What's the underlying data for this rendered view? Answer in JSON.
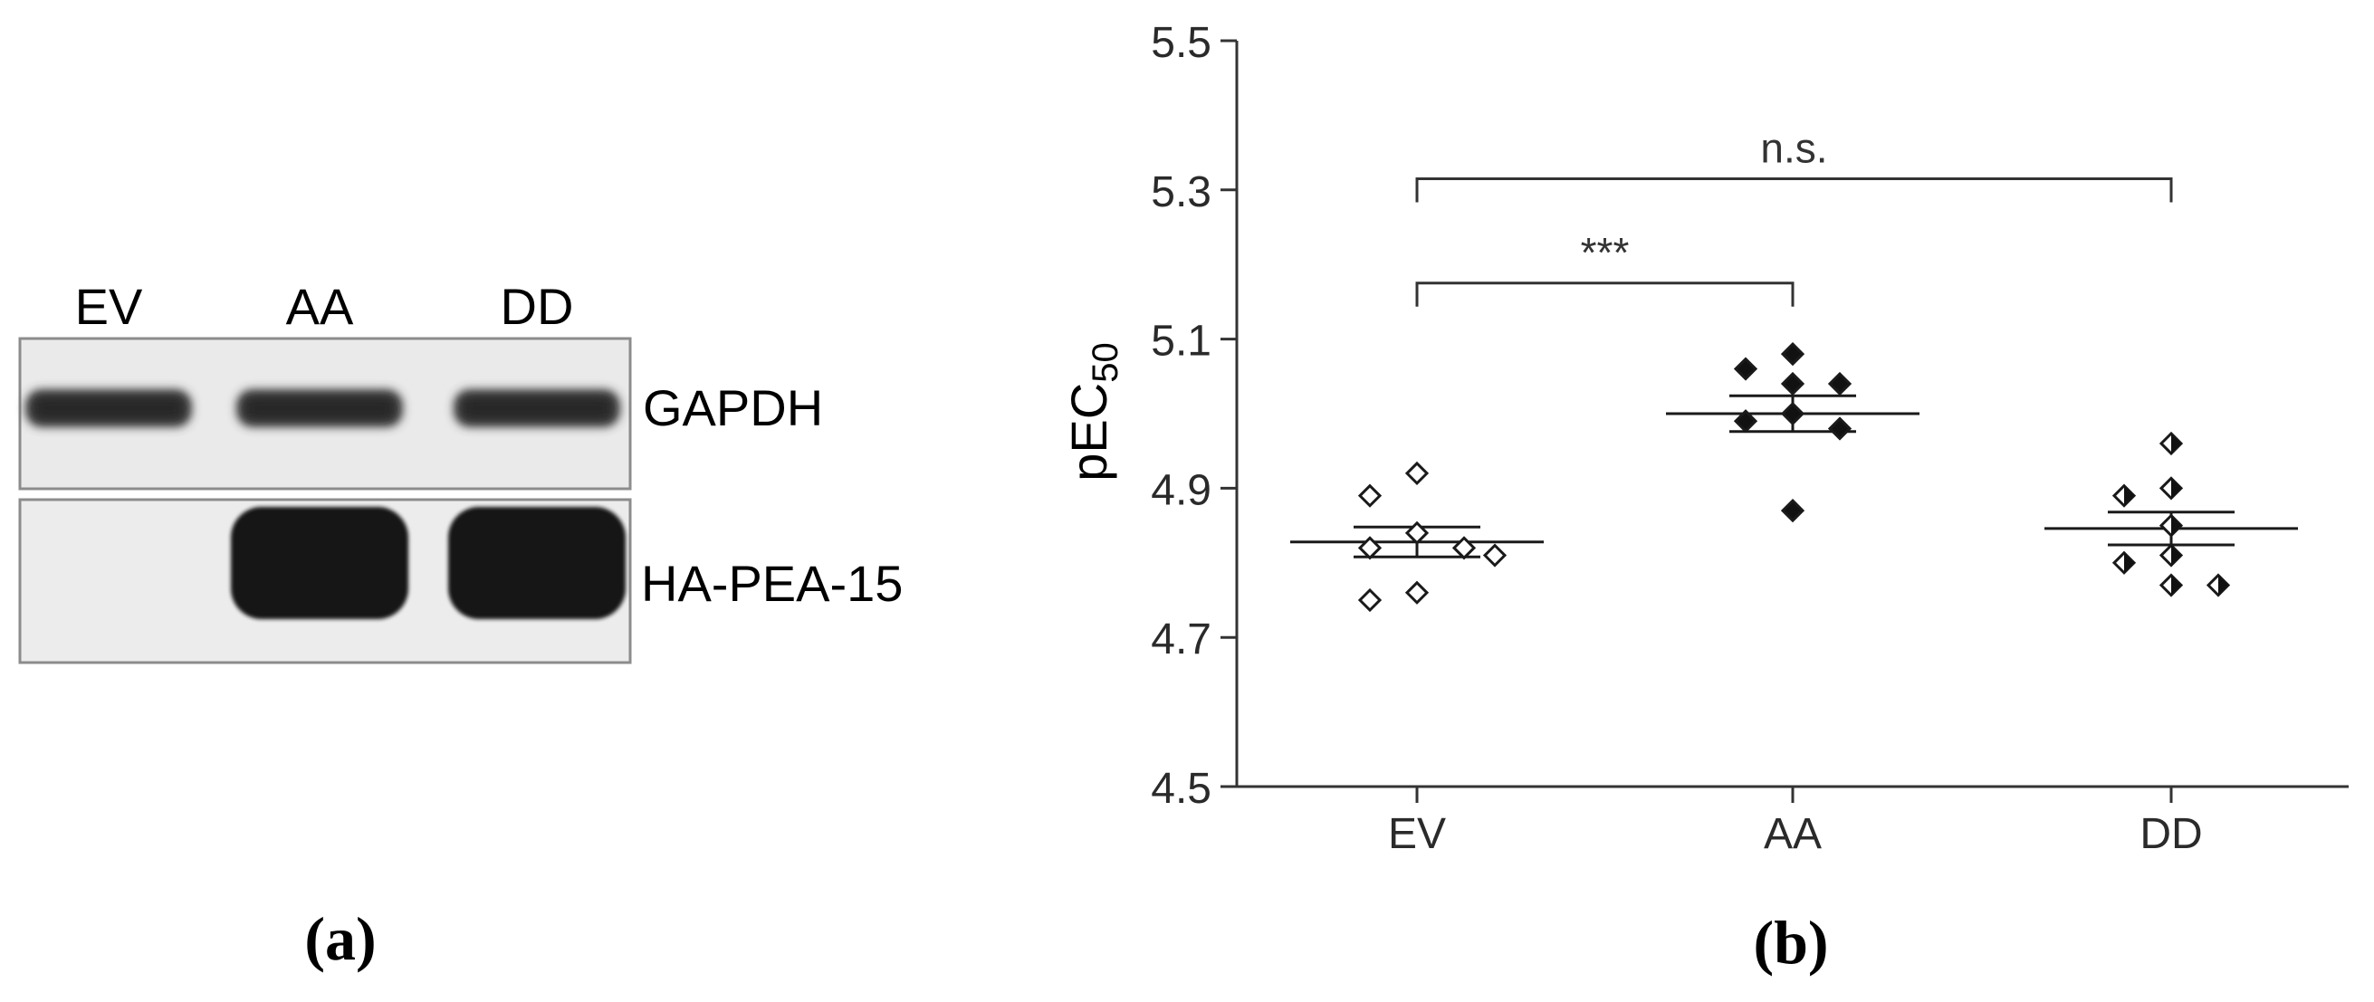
{
  "panel_a": {
    "caption": "(a)",
    "lanes": [
      "EV",
      "AA",
      "DD"
    ],
    "blots": [
      {
        "label": "GAPDH",
        "band_intensity": [
          1,
          1,
          1
        ]
      },
      {
        "label": "HA-PEA-15",
        "band_intensity": [
          0,
          1,
          1
        ]
      }
    ]
  },
  "panel_b": {
    "caption": "(b)",
    "significance": {
      "ev_aa": "***",
      "ev_dd": "n.s."
    }
  },
  "chart_data": {
    "type": "scatter",
    "title": "",
    "xlabel": "",
    "ylabel": "pEC50",
    "ylabel_main": "pEC",
    "ylabel_sub": "50",
    "ylim": [
      4.5,
      5.5
    ],
    "yticks": [
      4.5,
      4.7,
      4.9,
      5.1,
      5.3,
      5.5
    ],
    "ytick_labels": [
      "4.5",
      "4.7",
      "4.9",
      "5.1",
      "5.3",
      "5.5"
    ],
    "categories": [
      "EV",
      "AA",
      "DD"
    ],
    "grid": false,
    "series": [
      {
        "category": "EV",
        "marker": "open-diamond",
        "values": [
          4.92,
          4.89,
          4.84,
          4.82,
          4.82,
          4.81,
          4.76,
          4.75
        ],
        "mean": 4.828,
        "sem": 0.02
      },
      {
        "category": "AA",
        "marker": "filled-diamond",
        "values": [
          5.08,
          5.06,
          5.04,
          5.04,
          5.0,
          4.99,
          4.98,
          4.87
        ],
        "mean": 5.0,
        "sem": 0.024
      },
      {
        "category": "DD",
        "marker": "half-filled-diamond",
        "values": [
          4.96,
          4.9,
          4.89,
          4.85,
          4.81,
          4.8,
          4.77,
          4.77
        ],
        "mean": 4.846,
        "sem": 0.022
      }
    ],
    "comparisons": [
      {
        "from": "EV",
        "to": "AA",
        "label": "***"
      },
      {
        "from": "EV",
        "to": "DD",
        "label": "n.s."
      }
    ]
  }
}
